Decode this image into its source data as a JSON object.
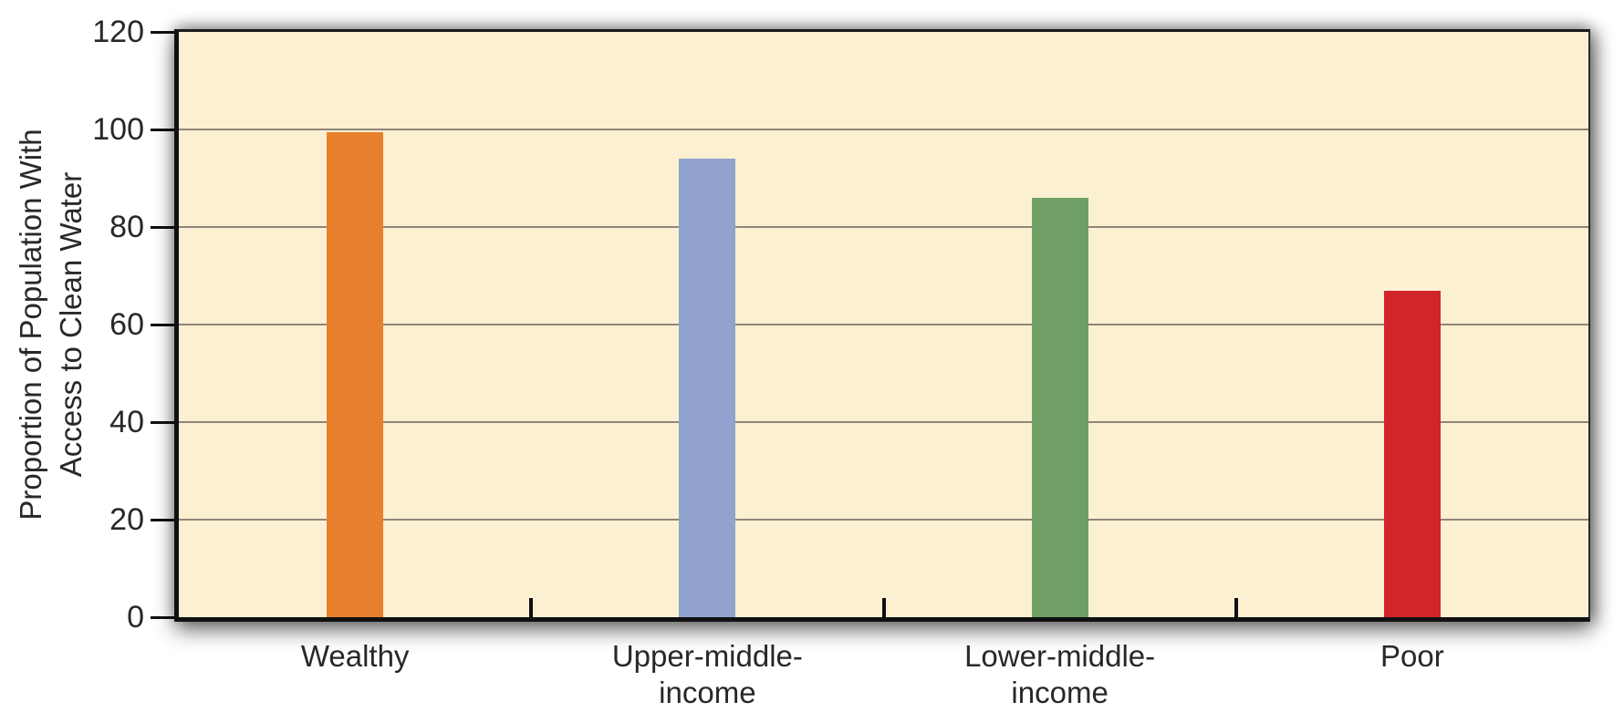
{
  "chart_data": {
    "type": "bar",
    "title": "",
    "categories": [
      "Wealthy",
      "Upper-middle-income",
      "Lower-middle-income",
      "Poor"
    ],
    "values": [
      99.5,
      94,
      86,
      67
    ],
    "xlabel": "",
    "ylabel": "Proportion of Population With Access to Clean Water",
    "ylabel_line1": "Proportion of Population With",
    "ylabel_line2": "Access to Clean Water",
    "y_ticks": [
      0,
      20,
      40,
      60,
      80,
      100,
      120
    ],
    "ylim": [
      0,
      120
    ],
    "grid": "horizontal gridlines at every 20 units",
    "legend": "none",
    "bar_colors": [
      "#E8802D",
      "#92A2CE",
      "#6F9F64",
      "#D2242B"
    ],
    "colors": {
      "page_background": "#FFFFFF",
      "plot_background": "#FBF0D1",
      "gridline": "#8F857A",
      "axis": "#111111",
      "text": "#2B2725"
    }
  }
}
